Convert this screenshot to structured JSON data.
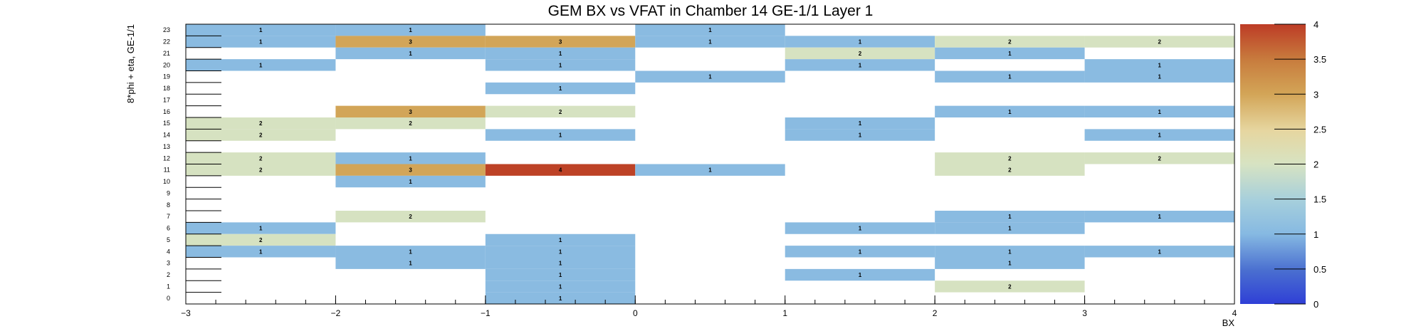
{
  "chart_data": {
    "type": "heatmap",
    "title": "GEM BX vs VFAT in Chamber 14 GE-1/1 Layer 1",
    "xlabel": "BX",
    "ylabel": "8*phi + eta, GE-1/1",
    "xlim": [
      -3,
      4
    ],
    "ylim": [
      0,
      24
    ],
    "zlim": [
      0,
      4
    ],
    "x_ticks": [
      -3,
      -2,
      -1,
      0,
      1,
      2,
      3,
      4
    ],
    "y_ticks": [
      0,
      1,
      2,
      3,
      4,
      5,
      6,
      7,
      8,
      9,
      10,
      11,
      12,
      13,
      14,
      15,
      16,
      17,
      18,
      19,
      20,
      21,
      22,
      23
    ],
    "z_ticks": [
      0,
      0.5,
      1,
      1.5,
      2,
      2.5,
      3,
      3.5,
      4
    ],
    "colorbar": true,
    "cells": [
      {
        "x0": -3,
        "x1": -2,
        "y": 23,
        "value": 1
      },
      {
        "x0": -2,
        "x1": -1,
        "y": 23,
        "value": 1
      },
      {
        "x0": 0,
        "x1": 1,
        "y": 23,
        "value": 1
      },
      {
        "x0": -3,
        "x1": -2,
        "y": 22,
        "value": 1
      },
      {
        "x0": -2,
        "x1": -1,
        "y": 22,
        "value": 3
      },
      {
        "x0": -1,
        "x1": 0,
        "y": 22,
        "value": 3
      },
      {
        "x0": 0,
        "x1": 1,
        "y": 22,
        "value": 1
      },
      {
        "x0": 1,
        "x1": 2,
        "y": 22,
        "value": 1
      },
      {
        "x0": 2,
        "x1": 3,
        "y": 22,
        "value": 2
      },
      {
        "x0": 3,
        "x1": 4,
        "y": 22,
        "value": 2
      },
      {
        "x0": -2,
        "x1": -1,
        "y": 21,
        "value": 1
      },
      {
        "x0": -1,
        "x1": 0,
        "y": 21,
        "value": 1
      },
      {
        "x0": 1,
        "x1": 2,
        "y": 21,
        "value": 2
      },
      {
        "x0": 2,
        "x1": 3,
        "y": 21,
        "value": 1
      },
      {
        "x0": -3,
        "x1": -2,
        "y": 20,
        "value": 1
      },
      {
        "x0": -1,
        "x1": 0,
        "y": 20,
        "value": 1
      },
      {
        "x0": 1,
        "x1": 2,
        "y": 20,
        "value": 1
      },
      {
        "x0": 3,
        "x1": 4,
        "y": 20,
        "value": 1
      },
      {
        "x0": 0,
        "x1": 1,
        "y": 19,
        "value": 1
      },
      {
        "x0": 2,
        "x1": 3,
        "y": 19,
        "value": 1
      },
      {
        "x0": 3,
        "x1": 4,
        "y": 19,
        "value": 1
      },
      {
        "x0": -1,
        "x1": 0,
        "y": 18,
        "value": 1
      },
      {
        "x0": -2,
        "x1": -1,
        "y": 16,
        "value": 3
      },
      {
        "x0": -1,
        "x1": 0,
        "y": 16,
        "value": 2
      },
      {
        "x0": 2,
        "x1": 3,
        "y": 16,
        "value": 1
      },
      {
        "x0": 3,
        "x1": 4,
        "y": 16,
        "value": 1
      },
      {
        "x0": -3,
        "x1": -2,
        "y": 15,
        "value": 2
      },
      {
        "x0": -2,
        "x1": -1,
        "y": 15,
        "value": 2
      },
      {
        "x0": 1,
        "x1": 2,
        "y": 15,
        "value": 1
      },
      {
        "x0": -3,
        "x1": -2,
        "y": 14,
        "value": 2
      },
      {
        "x0": -1,
        "x1": 0,
        "y": 14,
        "value": 1
      },
      {
        "x0": 1,
        "x1": 2,
        "y": 14,
        "value": 1
      },
      {
        "x0": 3,
        "x1": 4,
        "y": 14,
        "value": 1
      },
      {
        "x0": -3,
        "x1": -2,
        "y": 12,
        "value": 2
      },
      {
        "x0": -2,
        "x1": -1,
        "y": 12,
        "value": 1
      },
      {
        "x0": 2,
        "x1": 3,
        "y": 12,
        "value": 2
      },
      {
        "x0": 3,
        "x1": 4,
        "y": 12,
        "value": 2
      },
      {
        "x0": -3,
        "x1": -2,
        "y": 11,
        "value": 2
      },
      {
        "x0": -2,
        "x1": -1,
        "y": 11,
        "value": 3
      },
      {
        "x0": -1,
        "x1": 0,
        "y": 11,
        "value": 4
      },
      {
        "x0": 0,
        "x1": 1,
        "y": 11,
        "value": 1
      },
      {
        "x0": 2,
        "x1": 3,
        "y": 11,
        "value": 2
      },
      {
        "x0": -2,
        "x1": -1,
        "y": 10,
        "value": 1
      },
      {
        "x0": -2,
        "x1": -1,
        "y": 7,
        "value": 2
      },
      {
        "x0": 2,
        "x1": 3,
        "y": 7,
        "value": 1
      },
      {
        "x0": 3,
        "x1": 4,
        "y": 7,
        "value": 1
      },
      {
        "x0": -3,
        "x1": -2,
        "y": 6,
        "value": 1
      },
      {
        "x0": 1,
        "x1": 2,
        "y": 6,
        "value": 1
      },
      {
        "x0": 2,
        "x1": 3,
        "y": 6,
        "value": 1
      },
      {
        "x0": -3,
        "x1": -2,
        "y": 5,
        "value": 2
      },
      {
        "x0": -1,
        "x1": 0,
        "y": 5,
        "value": 1
      },
      {
        "x0": -3,
        "x1": -2,
        "y": 4,
        "value": 1
      },
      {
        "x0": -2,
        "x1": -1,
        "y": 4,
        "value": 1
      },
      {
        "x0": -1,
        "x1": 0,
        "y": 4,
        "value": 1
      },
      {
        "x0": 1,
        "x1": 2,
        "y": 4,
        "value": 1
      },
      {
        "x0": 2,
        "x1": 3,
        "y": 4,
        "value": 1
      },
      {
        "x0": 3,
        "x1": 4,
        "y": 4,
        "value": 1
      },
      {
        "x0": -2,
        "x1": -1,
        "y": 3,
        "value": 1
      },
      {
        "x0": -1,
        "x1": 0,
        "y": 3,
        "value": 1
      },
      {
        "x0": 2,
        "x1": 3,
        "y": 3,
        "value": 1
      },
      {
        "x0": -1,
        "x1": 0,
        "y": 2,
        "value": 1
      },
      {
        "x0": 1,
        "x1": 2,
        "y": 2,
        "value": 1
      },
      {
        "x0": -1,
        "x1": 0,
        "y": 1,
        "value": 1
      },
      {
        "x0": 2,
        "x1": 3,
        "y": 1,
        "value": 2
      },
      {
        "x0": -1,
        "x1": 0,
        "y": 0,
        "value": 1
      }
    ]
  }
}
